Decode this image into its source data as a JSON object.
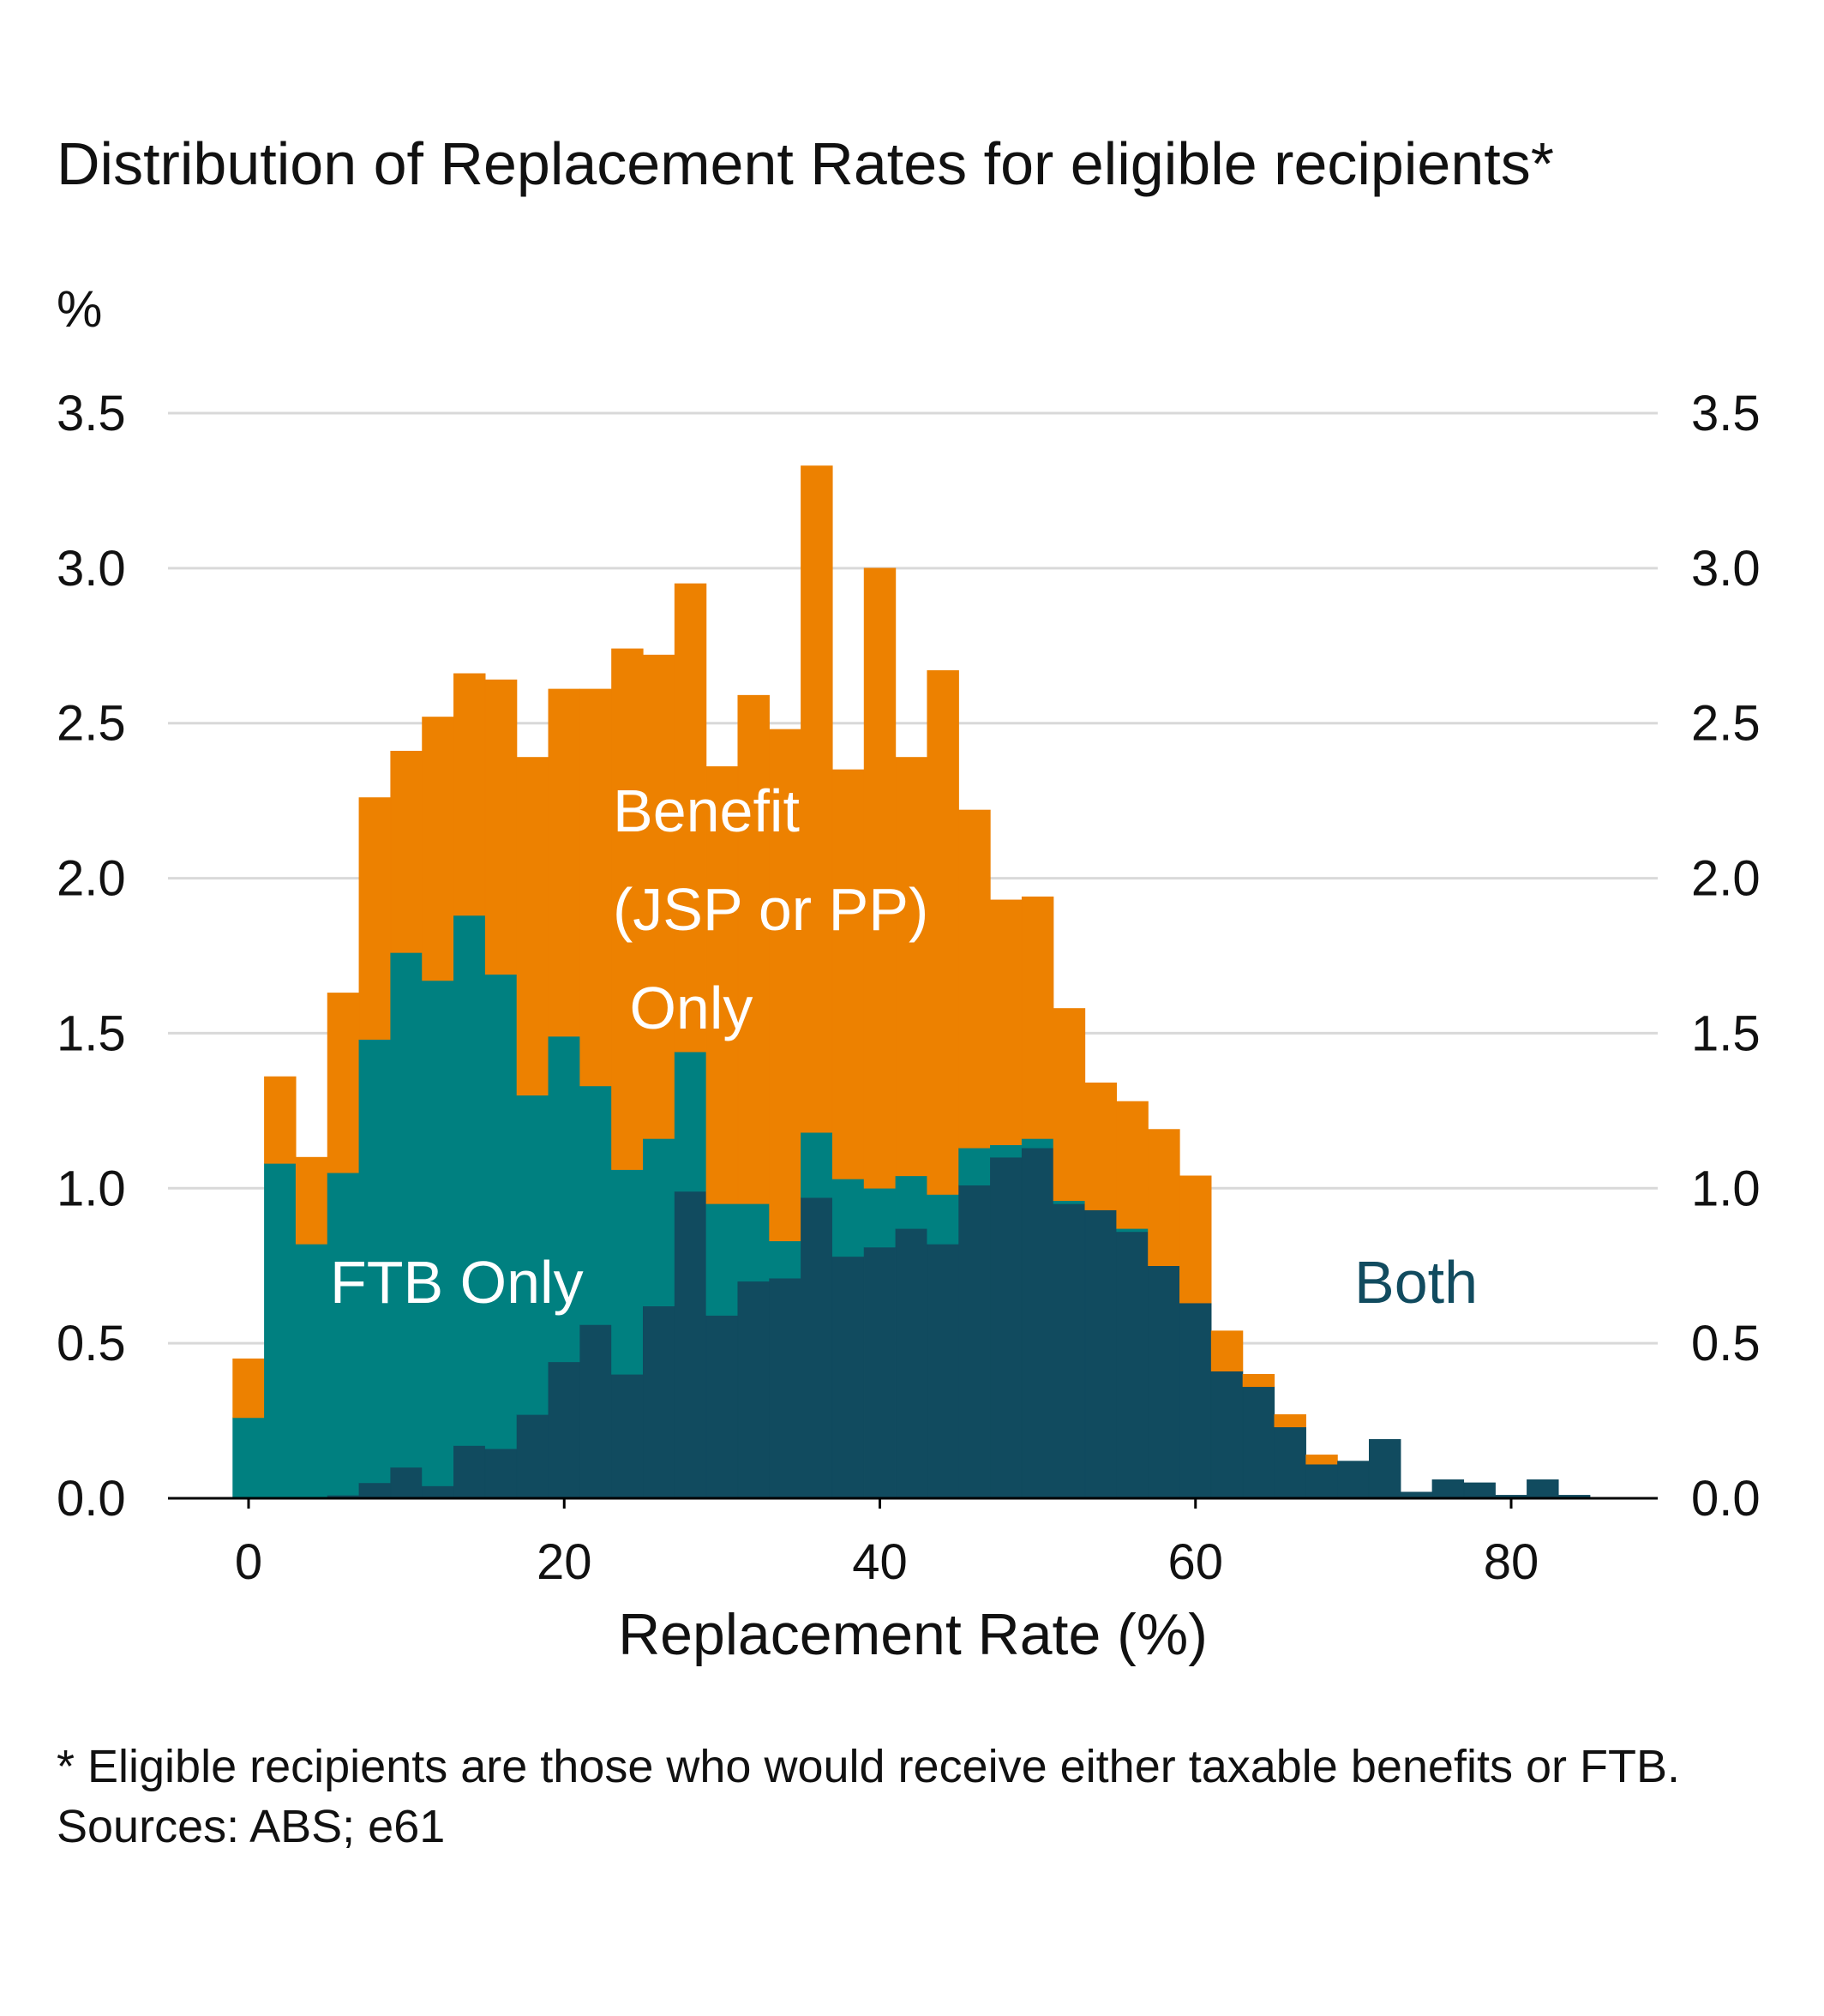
{
  "title": "Distribution of Replacement Rates for eligible recipients*",
  "unit_label": "%",
  "footnote": "* Eligible recipients are those who would receive either taxable benefits or FTB.",
  "sources": "Sources: ABS; e61",
  "colors": {
    "benefit": "#ED8100",
    "ftb": "#008080",
    "both": "#114B5F",
    "grid": "#D9D9D9",
    "axis": "#000000"
  },
  "chart_data": {
    "type": "bar",
    "stacked": true,
    "xlabel": "Replacement Rate (%)",
    "ylabel": "%",
    "xlim": [
      -5,
      89
    ],
    "ylim": [
      0,
      3.5
    ],
    "x_ticks": [
      0,
      20,
      40,
      60,
      80
    ],
    "y_ticks": [
      "0.0",
      "0.5",
      "1.0",
      "1.5",
      "2.0",
      "2.5",
      "3.0",
      "3.5"
    ],
    "y_axis_right": true,
    "grid": "horizontal",
    "bin_width": 2,
    "bin_centers": [
      0,
      2,
      4,
      6,
      8,
      10,
      12,
      14,
      16,
      18,
      20,
      22,
      24,
      26,
      28,
      30,
      32,
      34,
      36,
      38,
      40,
      42,
      44,
      46,
      48,
      50,
      52,
      54,
      56,
      58,
      60,
      62,
      64,
      66,
      68,
      70,
      72,
      74,
      76,
      78,
      80,
      82,
      84
    ],
    "series": [
      {
        "name": "Both",
        "color": "#114B5F",
        "values": [
          0,
          0,
          0,
          0.01,
          0.05,
          0.1,
          0.04,
          0.17,
          0.16,
          0.27,
          0.44,
          0.56,
          0.4,
          0.62,
          0.99,
          0.59,
          0.7,
          0.71,
          0.97,
          0.78,
          0.81,
          0.87,
          0.82,
          1.01,
          1.1,
          1.13,
          0.95,
          0.93,
          0.86,
          0.75,
          0.63,
          0.41,
          0.36,
          0.23,
          0.11,
          0.12,
          0.19,
          0.02,
          0.06,
          0.05,
          0.01,
          0.06,
          0.01
        ]
      },
      {
        "name": "FTB Only",
        "color": "#008080",
        "values": [
          0.26,
          1.08,
          0.82,
          1.04,
          1.43,
          1.66,
          1.63,
          1.71,
          1.53,
          1.03,
          1.05,
          0.77,
          0.66,
          0.54,
          0.45,
          0.36,
          0.25,
          0.12,
          0.21,
          0.25,
          0.19,
          0.17,
          0.16,
          0.12,
          0.04,
          0.03,
          0.01,
          0,
          0.01,
          0,
          0,
          0,
          0,
          0,
          0,
          0,
          0,
          0,
          0,
          0,
          0,
          0,
          0
        ]
      },
      {
        "name": "Benefit (JSP or PP) Only",
        "color": "#ED8100",
        "values": [
          0.19,
          0.28,
          0.28,
          0.58,
          0.78,
          0.65,
          0.85,
          0.78,
          0.95,
          1.09,
          1.12,
          1.28,
          1.68,
          1.56,
          1.51,
          1.41,
          1.64,
          1.65,
          2.15,
          1.32,
          2.0,
          1.35,
          1.69,
          1.09,
          0.79,
          0.78,
          0.62,
          0.41,
          0.41,
          0.44,
          0.41,
          0.13,
          0.04,
          0.04,
          0.03,
          0,
          0,
          0,
          0,
          0,
          0,
          0,
          0
        ]
      }
    ],
    "annotations": [
      {
        "lines": [
          "Benefit",
          "(JSP or PP)",
          " Only"
        ],
        "series": "Benefit (JSP or PP) Only",
        "text_color": "#FFFFFF"
      },
      {
        "lines": [
          "FTB Only"
        ],
        "series": "FTB Only",
        "text_color": "#FFFFFF"
      },
      {
        "lines": [
          "Both"
        ],
        "series": "Both",
        "text_color": "#114B5F"
      }
    ]
  }
}
